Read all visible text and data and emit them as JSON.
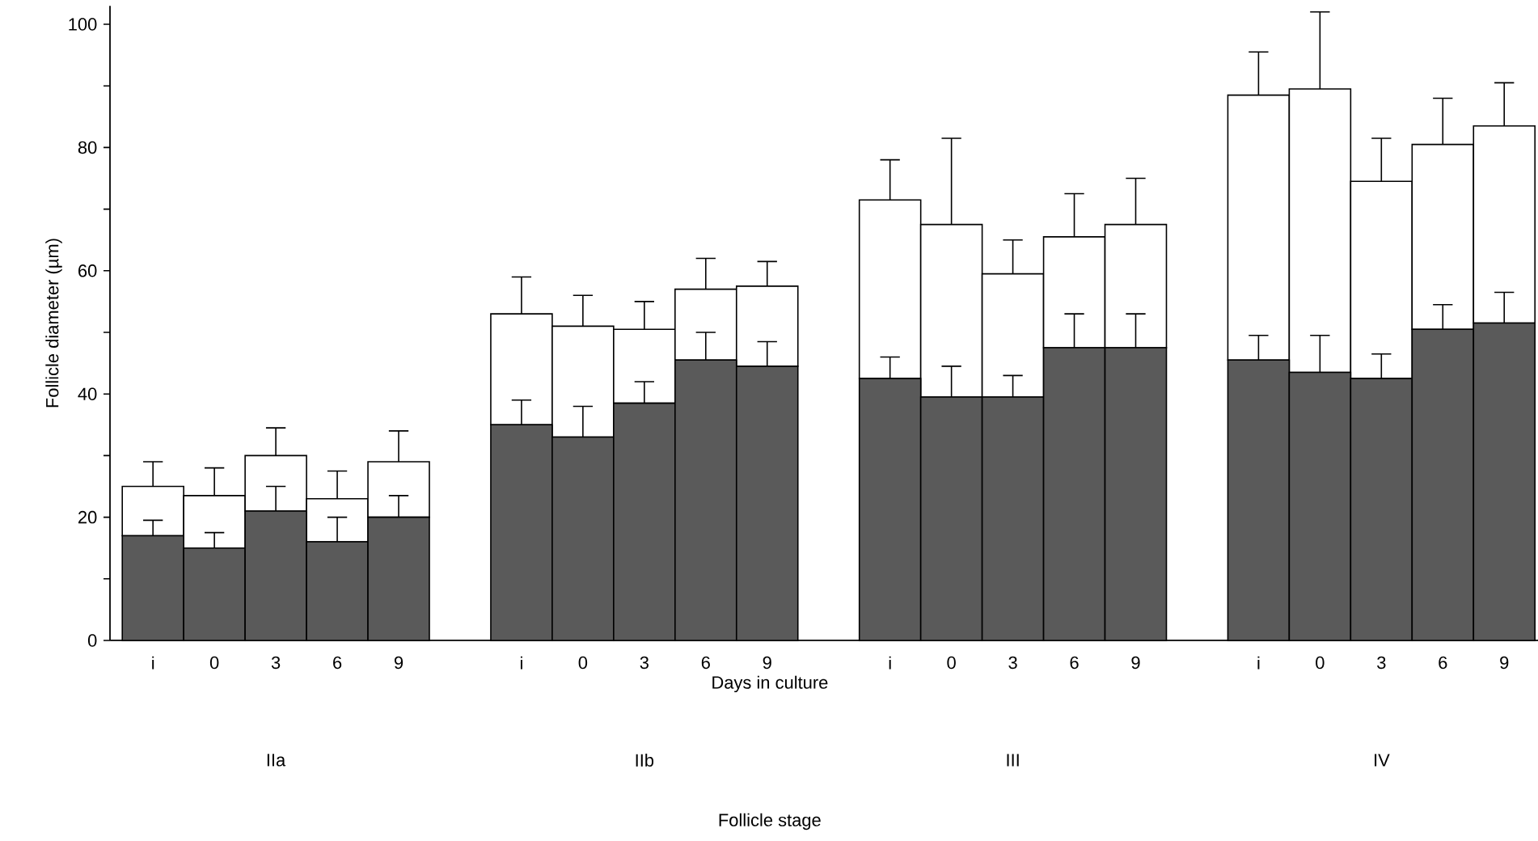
{
  "chart_data": {
    "type": "bar",
    "stacked": true,
    "xlabel": "Days in culture",
    "ylabel": "Follicle diameter (µm)",
    "categories": [
      "i",
      "0",
      "3",
      "6",
      "9",
      null,
      "i",
      "0",
      "3",
      "6",
      "9",
      null,
      "i",
      "0",
      "3",
      "6",
      "9",
      null,
      "i",
      "0",
      "3",
      "6",
      "9"
    ],
    "series": [
      {
        "color": "#5a5a5a",
        "values": [
          17,
          15,
          21,
          16,
          20,
          null,
          35,
          33,
          38.5,
          45.5,
          44.5,
          null,
          42.5,
          39.5,
          39.5,
          47.5,
          47.5,
          null,
          45.5,
          43.5,
          42.5,
          50.5,
          51.5
        ],
        "errors": [
          [
            17,
            19.5
          ],
          [
            15,
            17.5
          ],
          [
            21,
            25
          ],
          [
            16,
            20
          ],
          [
            20,
            23.5
          ],
          null,
          [
            35,
            39
          ],
          [
            33,
            38
          ],
          [
            38.5,
            42
          ],
          [
            45.5,
            50
          ],
          [
            44.5,
            48.5
          ],
          null,
          [
            42.5,
            46
          ],
          [
            39.5,
            44.5
          ],
          [
            39.5,
            43
          ],
          [
            47.5,
            53
          ],
          [
            47.5,
            53
          ],
          null,
          [
            45.5,
            49.5
          ],
          [
            43.5,
            49.5
          ],
          [
            42.5,
            46.5
          ],
          [
            50.5,
            54.5
          ],
          [
            51.5,
            56.5
          ]
        ]
      },
      {
        "color": "#ffffff",
        "values": [
          8,
          8.5,
          9,
          7,
          9,
          null,
          18,
          18,
          12,
          11.5,
          13,
          null,
          29,
          28,
          20,
          18,
          20,
          null,
          43,
          46,
          32,
          30,
          32
        ],
        "errors": [
          [
            25,
            29
          ],
          [
            23.5,
            28
          ],
          [
            30,
            34.5
          ],
          [
            23,
            27.5
          ],
          [
            29,
            34
          ],
          null,
          [
            53,
            59
          ],
          [
            51,
            56
          ],
          [
            50.5,
            55
          ],
          [
            57,
            62
          ],
          [
            57.5,
            61.5
          ],
          null,
          [
            71.5,
            78
          ],
          [
            67.5,
            81.5
          ],
          [
            59.5,
            65
          ],
          [
            65.5,
            72.5
          ],
          [
            67.5,
            75
          ],
          null,
          [
            88.5,
            95.5
          ],
          [
            89.5,
            102
          ],
          [
            74.5,
            81.5
          ],
          [
            80.5,
            88
          ],
          [
            83.5,
            90.5
          ]
        ]
      }
    ],
    "ylim": [
      0,
      103
    ],
    "yticks": [
      0,
      {
        "value": 10,
        "label": null
      },
      20,
      {
        "value": 30,
        "label": null
      },
      40,
      {
        "value": 50,
        "label": null
      },
      60,
      {
        "value": 70,
        "label": null
      },
      80,
      {
        "value": 90,
        "label": null
      },
      100
    ],
    "grid": false,
    "annotations": [
      "IIa",
      "IIb",
      "III",
      "IV",
      "Follicle stage"
    ]
  }
}
